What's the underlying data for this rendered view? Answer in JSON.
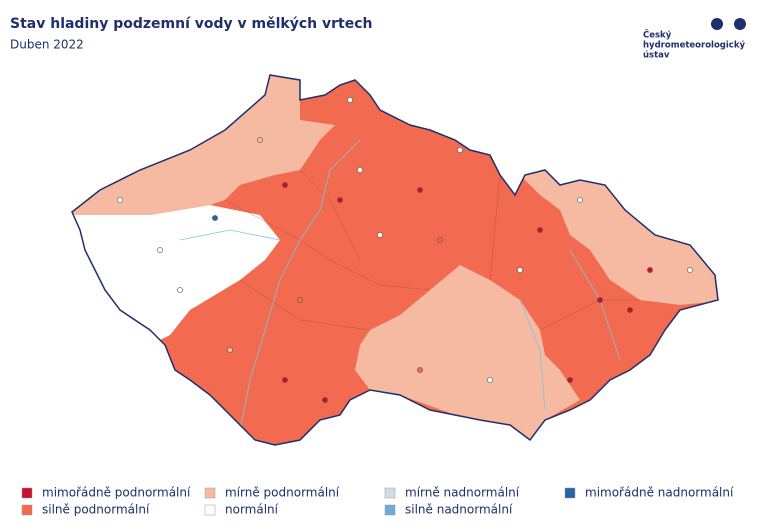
{
  "header": {
    "title": "Stav hladiny podzemní vody v mělkých vrtech",
    "subtitle": "Duben 2022"
  },
  "logo": {
    "lines": [
      "Český",
      "hydrometeorologický",
      "ústav"
    ]
  },
  "legend": {
    "items": [
      {
        "name": "mimořádně podnormální",
        "color": "#c8102e"
      },
      {
        "name": "silně podnormální",
        "color": "#f26a4f"
      },
      {
        "name": "mírně podnormální",
        "color": "#f6b9a1"
      },
      {
        "name": "normální",
        "color": "#ffffff"
      },
      {
        "name": "mírně nadnormální",
        "color": "#cfdcea"
      },
      {
        "name": "silně nadnormální",
        "color": "#6fa8d9"
      },
      {
        "name": "mimořádně nadnormální",
        "color": "#2566a8"
      }
    ]
  }
}
